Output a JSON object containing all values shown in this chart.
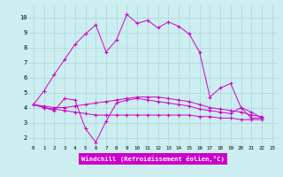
{
  "xlabel": "Windchill (Refroidissement éolien,°C)",
  "bg_color": "#cceef0",
  "grid_color": "#aad4d8",
  "line_color": "#cc00cc",
  "xlim": [
    -0.5,
    23.5
  ],
  "ylim": [
    1.5,
    10.8
  ],
  "xticks": [
    0,
    1,
    2,
    3,
    4,
    5,
    6,
    7,
    8,
    9,
    10,
    11,
    12,
    13,
    14,
    15,
    16,
    17,
    18,
    19,
    20,
    21,
    22,
    23
  ],
  "yticks": [
    2,
    3,
    4,
    5,
    6,
    7,
    8,
    9,
    10
  ],
  "series": [
    {
      "x": [
        0,
        1,
        2,
        3,
        4,
        5,
        6,
        7,
        8,
        9,
        10,
        11,
        12,
        13,
        14,
        15,
        16,
        17,
        18,
        19,
        20,
        21,
        22
      ],
      "y": [
        4.2,
        5.1,
        6.2,
        7.2,
        8.2,
        8.9,
        9.5,
        7.7,
        8.5,
        10.2,
        9.6,
        9.8,
        9.3,
        9.7,
        9.4,
        8.9,
        7.7,
        4.7,
        5.3,
        5.6,
        4.0,
        3.7,
        3.3
      ]
    },
    {
      "x": [
        0,
        1,
        2,
        3,
        4,
        5,
        6,
        7,
        8,
        9,
        10,
        11,
        12,
        13,
        14,
        15,
        16,
        17,
        18,
        19,
        20,
        21,
        22
      ],
      "y": [
        4.2,
        4.0,
        3.8,
        4.6,
        4.5,
        2.6,
        1.7,
        3.1,
        4.3,
        4.5,
        4.6,
        4.5,
        4.4,
        4.3,
        4.2,
        4.1,
        3.9,
        3.8,
        3.7,
        3.6,
        4.0,
        3.3,
        3.3
      ]
    },
    {
      "x": [
        0,
        1,
        2,
        3,
        4,
        5,
        6,
        7,
        8,
        9,
        10,
        11,
        12,
        13,
        14,
        15,
        16,
        17,
        18,
        19,
        20,
        21,
        22
      ],
      "y": [
        4.2,
        4.1,
        4.0,
        4.0,
        4.1,
        4.2,
        4.3,
        4.4,
        4.5,
        4.6,
        4.7,
        4.7,
        4.7,
        4.6,
        4.5,
        4.4,
        4.2,
        4.0,
        3.9,
        3.8,
        3.7,
        3.5,
        3.4
      ]
    },
    {
      "x": [
        0,
        1,
        2,
        3,
        4,
        5,
        6,
        7,
        8,
        9,
        10,
        11,
        12,
        13,
        14,
        15,
        16,
        17,
        18,
        19,
        20,
        21,
        22
      ],
      "y": [
        4.2,
        4.0,
        3.9,
        3.8,
        3.7,
        3.6,
        3.5,
        3.5,
        3.5,
        3.5,
        3.5,
        3.5,
        3.5,
        3.5,
        3.5,
        3.5,
        3.4,
        3.4,
        3.3,
        3.3,
        3.2,
        3.2,
        3.2
      ]
    }
  ]
}
